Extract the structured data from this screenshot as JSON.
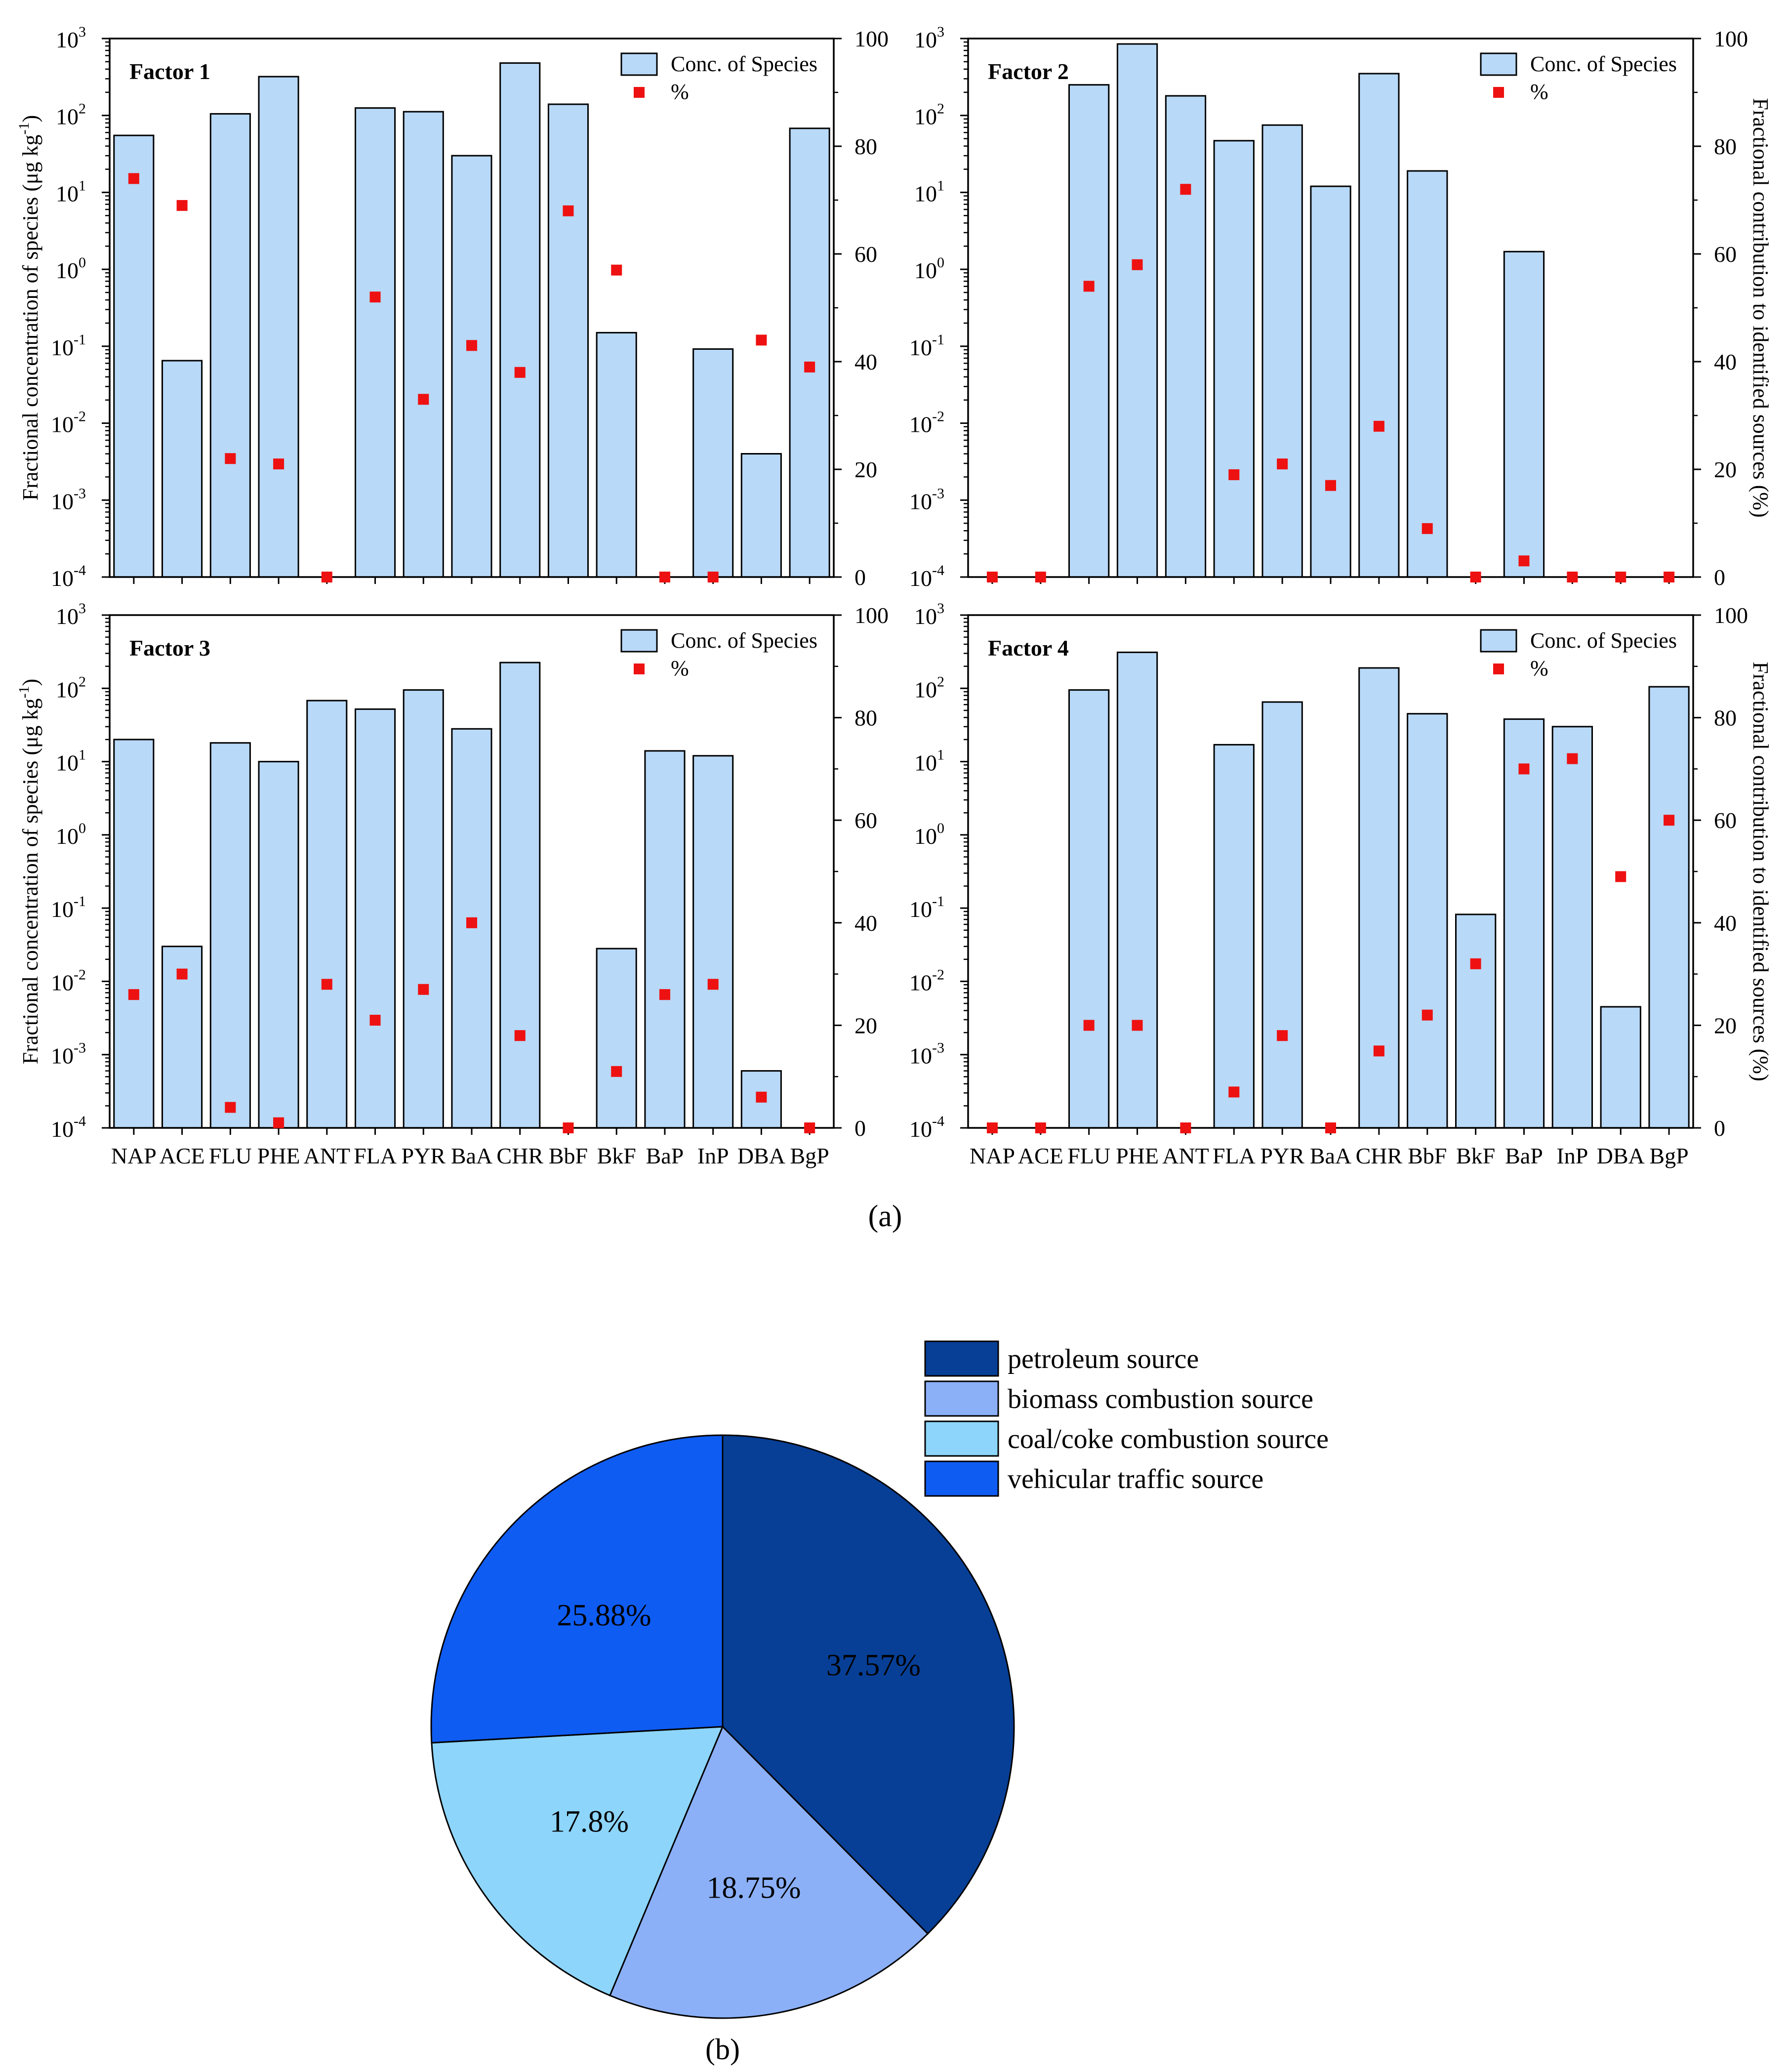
{
  "figure": {
    "label_a": "(a)",
    "label_b": "(b)"
  },
  "axes_text": {
    "left_ylabel": "Fractional concentration of species (μg kg",
    "left_ylabel_sup": "-1",
    "left_ylabel_close": ")",
    "right_ylabel": "Fractional contribution to identified sources (%)",
    "legend_bar": "Conc. of Species",
    "legend_marker": "%",
    "log_ticks": [
      "10",
      "10",
      "10",
      "10",
      "10",
      "10",
      "10",
      "10"
    ],
    "log_exponents": [
      "-4",
      "-3",
      "-2",
      "-1",
      "0",
      "1",
      "2",
      "3"
    ],
    "right_ticks": [
      "0",
      "20",
      "40",
      "60",
      "80",
      "100"
    ]
  },
  "colors": {
    "bar_fill": "#b8d9f8",
    "marker": "#ee1111",
    "pie_petroleum": "#073f96",
    "pie_biomass": "#8bb0f8",
    "pie_coal": "#8dd5fb",
    "pie_vehicular": "#0f5cf2"
  },
  "chart_data": [
    {
      "type": "bar",
      "title": "Factor 1",
      "categories": [
        "NAP",
        "ACE",
        "FLU",
        "PHE",
        "ANT",
        "FLA",
        "PYR",
        "BaA",
        "CHR",
        "BbF",
        "BkF",
        "BaP",
        "InP",
        "DBA",
        "BgP"
      ],
      "ylabel": "Fractional concentration of species (μg kg-1)",
      "y2label": "Fractional contribution to identified sources (%)",
      "yscale": "log",
      "ylim": [
        0.0001,
        1000
      ],
      "y2lim": [
        0,
        100
      ],
      "series": [
        {
          "name": "Conc. of Species",
          "axis": "left",
          "values": [
            55,
            0.065,
            105,
            320,
            0.0001,
            125,
            112,
            30,
            480,
            140,
            0.15,
            0.0001,
            0.092,
            0.004,
            68
          ]
        },
        {
          "name": "%",
          "axis": "right",
          "values": [
            74,
            69,
            22,
            21,
            0,
            52,
            33,
            43,
            38,
            68,
            57,
            0,
            0,
            44,
            39
          ]
        }
      ]
    },
    {
      "type": "bar",
      "title": "Factor 2",
      "categories": [
        "NAP",
        "ACE",
        "FLU",
        "PHE",
        "ANT",
        "FLA",
        "PYR",
        "BaA",
        "CHR",
        "BbF",
        "BkF",
        "BaP",
        "InP",
        "DBA",
        "BgP"
      ],
      "ylabel": "Fractional concentration of species (μg kg-1)",
      "y2label": "Fractional contribution to identified sources (%)",
      "yscale": "log",
      "ylim": [
        0.0001,
        1000
      ],
      "y2lim": [
        0,
        100
      ],
      "series": [
        {
          "name": "Conc. of Species",
          "axis": "left",
          "values": [
            0.0001,
            0.0001,
            250,
            850,
            180,
            47,
            75,
            12,
            350,
            19,
            0.0001,
            1.7,
            0.0001,
            0.0001,
            0.0001
          ]
        },
        {
          "name": "%",
          "axis": "right",
          "values": [
            0,
            0,
            54,
            58,
            72,
            19,
            21,
            17,
            28,
            9,
            0,
            3,
            0,
            0,
            0
          ]
        }
      ]
    },
    {
      "type": "bar",
      "title": "Factor 3",
      "categories": [
        "NAP",
        "ACE",
        "FLU",
        "PHE",
        "ANT",
        "FLA",
        "PYR",
        "BaA",
        "CHR",
        "BbF",
        "BkF",
        "BaP",
        "InP",
        "DBA",
        "BgP"
      ],
      "ylabel": "Fractional concentration of species (μg kg-1)",
      "y2label": "Fractional contribution to identified sources (%)",
      "yscale": "log",
      "ylim": [
        0.0001,
        1000
      ],
      "y2lim": [
        0,
        100
      ],
      "series": [
        {
          "name": "Conc. of Species",
          "axis": "left",
          "values": [
            20,
            0.03,
            18,
            10,
            68,
            52,
            95,
            28,
            225,
            0.0001,
            0.028,
            14,
            12,
            0.0006,
            0.0001
          ]
        },
        {
          "name": "%",
          "axis": "right",
          "values": [
            26,
            30,
            4,
            1,
            28,
            21,
            27,
            40,
            18,
            0,
            11,
            26,
            28,
            6,
            0
          ]
        }
      ]
    },
    {
      "type": "bar",
      "title": "Factor 4",
      "categories": [
        "NAP",
        "ACE",
        "FLU",
        "PHE",
        "ANT",
        "FLA",
        "PYR",
        "BaA",
        "CHR",
        "BbF",
        "BkF",
        "BaP",
        "InP",
        "DBA",
        "BgP"
      ],
      "ylabel": "Fractional concentration of species (μg kg-1)",
      "y2label": "Fractional contribution to identified sources (%)",
      "yscale": "log",
      "ylim": [
        0.0001,
        1000
      ],
      "y2lim": [
        0,
        100
      ],
      "series": [
        {
          "name": "Conc. of Species",
          "axis": "left",
          "values": [
            0.0001,
            0.0001,
            95,
            310,
            0.0001,
            17,
            65,
            0.0001,
            190,
            45,
            0.082,
            38,
            30,
            0.0045,
            105
          ]
        },
        {
          "name": "%",
          "axis": "right",
          "values": [
            0,
            0,
            20,
            20,
            0,
            7,
            18,
            0,
            15,
            22,
            32,
            70,
            72,
            49,
            60
          ]
        }
      ]
    },
    {
      "type": "pie",
      "title": "",
      "labels": [
        "petroleum source",
        "biomass combustion source",
        "coal/coke combustion source",
        "vehicular traffic source"
      ],
      "values": [
        37.57,
        18.75,
        17.8,
        25.88
      ],
      "value_labels": [
        "37.57%",
        "18.75%",
        "17.8%",
        "25.88%"
      ]
    }
  ]
}
